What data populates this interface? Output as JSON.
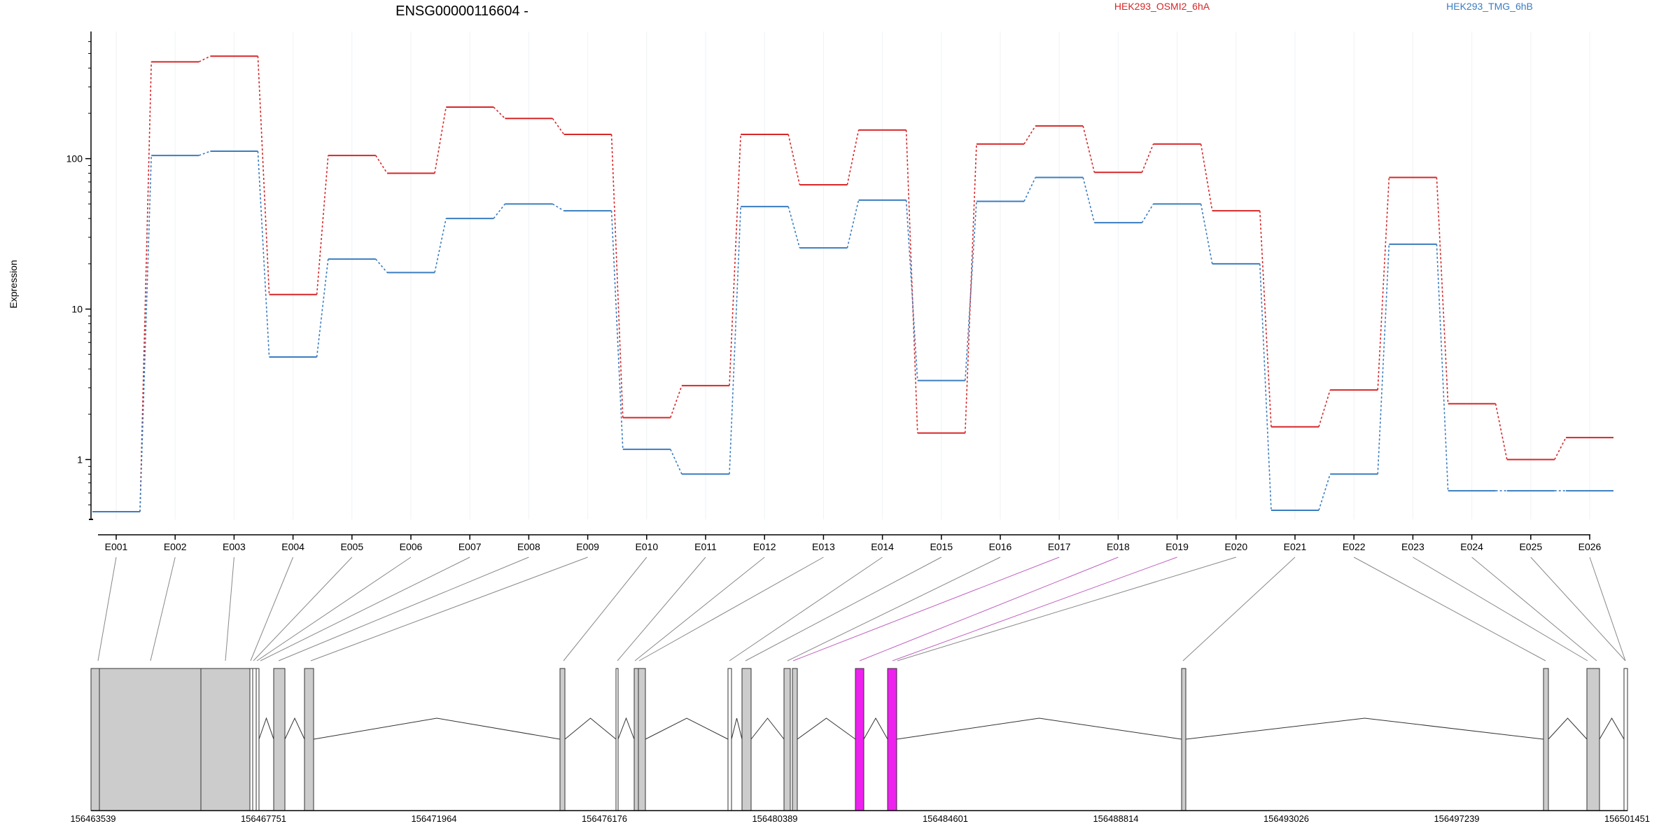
{
  "title": "ENSG00000116604 -",
  "colors": {
    "series1": "#d62728",
    "series2": "#3a7dc0",
    "exon_fill": "#cccccc",
    "highlight": "#ee22ee",
    "connector": "#888888",
    "highlight_connector": "#c060c0"
  },
  "chart_data": {
    "type": "line",
    "title": "ENSG00000116604 -",
    "ylabel": "Expression",
    "xlabel": "",
    "yscale": "log",
    "ylim": [
      0.4,
      700
    ],
    "yticks": [
      1,
      10,
      100
    ],
    "ytick_labels": [
      "1",
      "10",
      "100"
    ],
    "legend_placement": "top-right",
    "categories": [
      "E001",
      "E002",
      "E003",
      "E004",
      "E005",
      "E006",
      "E007",
      "E008",
      "E009",
      "E010",
      "E011",
      "E012",
      "E013",
      "E014",
      "E015",
      "E016",
      "E017",
      "E018",
      "E019",
      "E020",
      "E021",
      "E022",
      "E023",
      "E024",
      "E025",
      "E026"
    ],
    "series": [
      {
        "name": "HEK293_OSMI2_6hA",
        "color": "#d62728",
        "values": [
          0.45,
          440,
          480,
          12.5,
          105,
          80,
          220,
          185,
          145,
          1.9,
          3.1,
          145,
          67,
          155,
          1.5,
          125,
          165,
          81,
          125,
          45,
          1.65,
          2.9,
          75,
          2.35,
          1.0,
          1.4
        ]
      },
      {
        "name": "HEK293_TMG_6hB",
        "color": "#3a7dc0",
        "values": [
          0.45,
          105,
          112,
          4.8,
          21.5,
          17.5,
          40,
          50,
          45,
          1.17,
          0.8,
          48,
          25.5,
          53,
          3.35,
          52,
          75,
          37.5,
          50,
          20,
          0.46,
          0.8,
          27,
          0.62,
          0.62,
          0.62
        ]
      }
    ]
  },
  "gene_model": {
    "genomic_ticks": [
      "156463539",
      "156467751",
      "156471964",
      "156476176",
      "156480389",
      "156484601",
      "156488814",
      "156493026",
      "156497239",
      "156501451"
    ],
    "exon_labels": [
      "E001",
      "E002",
      "E003",
      "E004",
      "E005",
      "E006",
      "E007",
      "E008",
      "E009",
      "E010",
      "E011",
      "E012",
      "E013",
      "E014",
      "E015",
      "E016",
      "E017",
      "E018",
      "E019",
      "E020",
      "E021",
      "E022",
      "E023",
      "E024",
      "E025",
      "E026"
    ],
    "highlighted_exons": [
      "E017",
      "E018",
      "E019"
    ]
  }
}
